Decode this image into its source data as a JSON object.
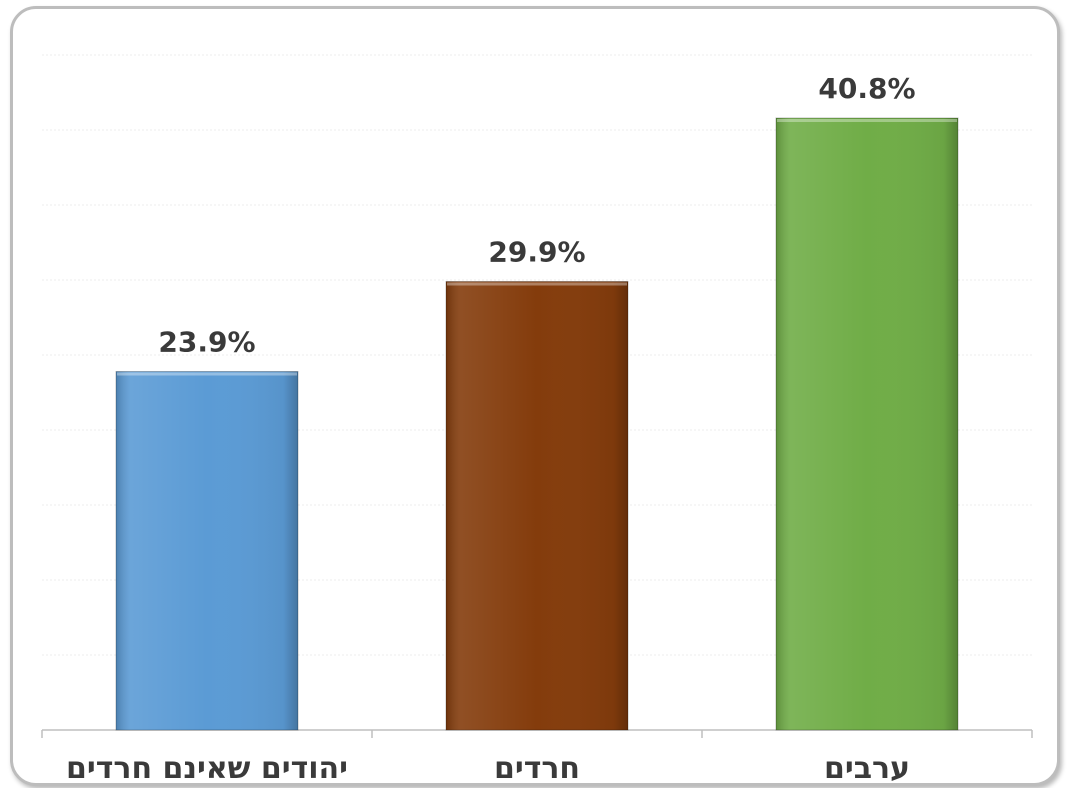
{
  "chart_data": {
    "type": "bar",
    "categories": [
      "יהודים שאינם חרדים",
      "חרדים",
      "ערבים"
    ],
    "values": [
      23.9,
      29.9,
      40.8
    ],
    "value_labels": [
      "23.9%",
      "29.9%",
      "40.8%"
    ],
    "colors": [
      "#5b9bd5",
      "#843c0c",
      "#70ad47"
    ],
    "ylim": [
      0,
      45
    ],
    "grid": true,
    "title": "",
    "xlabel": "",
    "ylabel": ""
  }
}
